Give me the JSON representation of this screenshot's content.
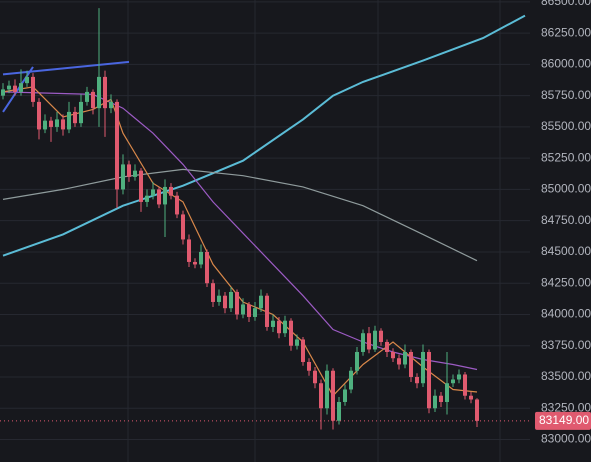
{
  "chart_data": {
    "type": "candlestick",
    "up_color": "#4fb07f",
    "down_color": "#e05a6f",
    "grid": true,
    "ylim": [
      82820,
      86515
    ],
    "yticks": [
      {
        "value": 83000,
        "label": "83000.00"
      },
      {
        "value": 83250,
        "label": "83250.00"
      },
      {
        "value": 83500,
        "label": "83500.00"
      },
      {
        "value": 83750,
        "label": "83750.00"
      },
      {
        "value": 84000,
        "label": "84000.00"
      },
      {
        "value": 84250,
        "label": "84250.00"
      },
      {
        "value": 84500,
        "label": "84500.00"
      },
      {
        "value": 84750,
        "label": "84750.00"
      },
      {
        "value": 85000,
        "label": "85000.00"
      },
      {
        "value": 85250,
        "label": "85250.00"
      },
      {
        "value": 85500,
        "label": "85500.00"
      },
      {
        "value": 85750,
        "label": "85750.00"
      },
      {
        "value": 86000,
        "label": "86000.00"
      },
      {
        "value": 86250,
        "label": "86250.00"
      },
      {
        "value": 86500,
        "label": "86500.00"
      }
    ],
    "last_price": {
      "value": 83149,
      "label": "83149.00"
    },
    "open": [
      85750,
      85800,
      85830,
      85780,
      85850,
      85900,
      85700,
      85480,
      85550,
      85500,
      85560,
      85480,
      85620,
      85530,
      85700,
      85780,
      85650,
      85900,
      85650,
      85700,
      85000,
      85200,
      85100,
      85150,
      84900,
      84950,
      85000,
      84880,
      85020,
      84950,
      84800,
      84600,
      84420,
      84400,
      84500,
      84250,
      84100,
      84150,
      84050,
      84180,
      84000,
      84080,
      83980,
      84050,
      84150,
      83900,
      83950,
      83850,
      83950,
      83750,
      83800,
      83620,
      83550,
      83450,
      83250,
      83550,
      83150,
      83300,
      83400,
      83550,
      83700,
      83850,
      83720,
      83870,
      83780,
      83700,
      83650,
      83600,
      83700,
      83500,
      83450,
      83700,
      83250,
      83350,
      83300,
      83450,
      83480,
      83520,
      83350,
      83320
    ],
    "high": [
      85850,
      85870,
      85880,
      85960,
      85950,
      85930,
      85730,
      85600,
      85580,
      85620,
      85600,
      85700,
      85660,
      85760,
      85820,
      85800,
      86450,
      85950,
      85760,
      85720,
      85280,
      85230,
      85200,
      85170,
      85000,
      85060,
      85020,
      85080,
      85050,
      84980,
      84830,
      84640,
      84450,
      84560,
      84520,
      84280,
      84200,
      84180,
      84220,
      84200,
      84130,
      84100,
      84100,
      84200,
      84170,
      84000,
      83980,
      83990,
      83970,
      83840,
      83820,
      83650,
      83580,
      83480,
      83600,
      83570,
      83340,
      83440,
      83580,
      83740,
      83880,
      83900,
      83910,
      83890,
      83800,
      83730,
      83680,
      83760,
      83720,
      83530,
      83760,
      83720,
      83400,
      83380,
      83700,
      83520,
      83560,
      83540,
      83380,
      83330
    ],
    "low": [
      85720,
      85770,
      85750,
      85750,
      85820,
      85660,
      85400,
      85450,
      85380,
      85460,
      85430,
      85450,
      85500,
      85500,
      85670,
      85600,
      85500,
      85420,
      85610,
      84850,
      84960,
      85060,
      85070,
      84820,
      84860,
      84920,
      84850,
      84620,
      84920,
      84770,
      84560,
      84380,
      84370,
      84370,
      84220,
      84060,
      84070,
      84010,
      84020,
      83960,
      83970,
      83940,
      83950,
      84020,
      83870,
      83860,
      83810,
      83820,
      83710,
      83720,
      83590,
      83510,
      83410,
      83080,
      83200,
      83080,
      83120,
      83270,
      83370,
      83520,
      83670,
      83690,
      83700,
      83750,
      83660,
      83620,
      83560,
      83570,
      83460,
      83410,
      83420,
      83210,
      83220,
      83260,
      83200,
      83420,
      83450,
      83320,
      83290,
      83100
    ],
    "close": [
      85800,
      85830,
      85780,
      85850,
      85900,
      85700,
      85480,
      85550,
      85500,
      85560,
      85480,
      85620,
      85530,
      85700,
      85780,
      85650,
      85900,
      85650,
      85700,
      85000,
      85200,
      85100,
      85150,
      84900,
      84950,
      85000,
      84880,
      85020,
      84950,
      84800,
      84600,
      84420,
      84400,
      84500,
      84250,
      84100,
      84150,
      84050,
      84180,
      84000,
      84080,
      83980,
      84050,
      84150,
      83900,
      83950,
      83850,
      83950,
      83750,
      83800,
      83620,
      83550,
      83450,
      83250,
      83550,
      83150,
      83300,
      83400,
      83550,
      83700,
      83850,
      83720,
      83870,
      83780,
      83700,
      83650,
      83600,
      83700,
      83500,
      83450,
      83700,
      83250,
      83350,
      83300,
      83450,
      83480,
      83520,
      83350,
      83320,
      83149
    ],
    "series": [
      {
        "color": "#5bbcd6",
        "x": [
          0,
          10,
          20,
          30,
          40,
          50,
          55,
          60,
          70,
          80,
          87
        ],
        "values": [
          84470,
          84640,
          84870,
          85030,
          85230,
          85560,
          85750,
          85860,
          86030,
          86210,
          86390
        ]
      },
      {
        "color": "#8f9b9c",
        "x": [
          0,
          10,
          20,
          30,
          40,
          50,
          60,
          70,
          79
        ],
        "values": [
          84920,
          85000,
          85100,
          85160,
          85110,
          85020,
          84870,
          84640,
          84430
        ]
      },
      {
        "color": "#9c5bc4",
        "x": [
          0,
          15,
          20,
          25,
          30,
          35,
          40,
          45,
          50,
          55,
          60,
          65,
          70,
          75,
          79
        ],
        "values": [
          85780,
          85760,
          85650,
          85450,
          85200,
          84900,
          84650,
          84400,
          84150,
          83880,
          83780,
          83700,
          83640,
          83600,
          83560
        ]
      },
      {
        "color": "#d9884a",
        "x": [
          0,
          5,
          10,
          15,
          18,
          20,
          25,
          30,
          35,
          40,
          45,
          50,
          55,
          60,
          65,
          70,
          75,
          79
        ],
        "values": [
          85780,
          85820,
          85580,
          85640,
          85720,
          85450,
          85050,
          84900,
          84400,
          84100,
          84000,
          83780,
          83350,
          83600,
          83780,
          83580,
          83400,
          83380
        ]
      },
      {
        "color": "#4a66e0",
        "x": [
          0,
          21
        ],
        "values": [
          85920,
          86020
        ]
      },
      {
        "color": "#4a66e0",
        "x": [
          0,
          5
        ],
        "values": [
          85620,
          85980
        ]
      }
    ]
  }
}
